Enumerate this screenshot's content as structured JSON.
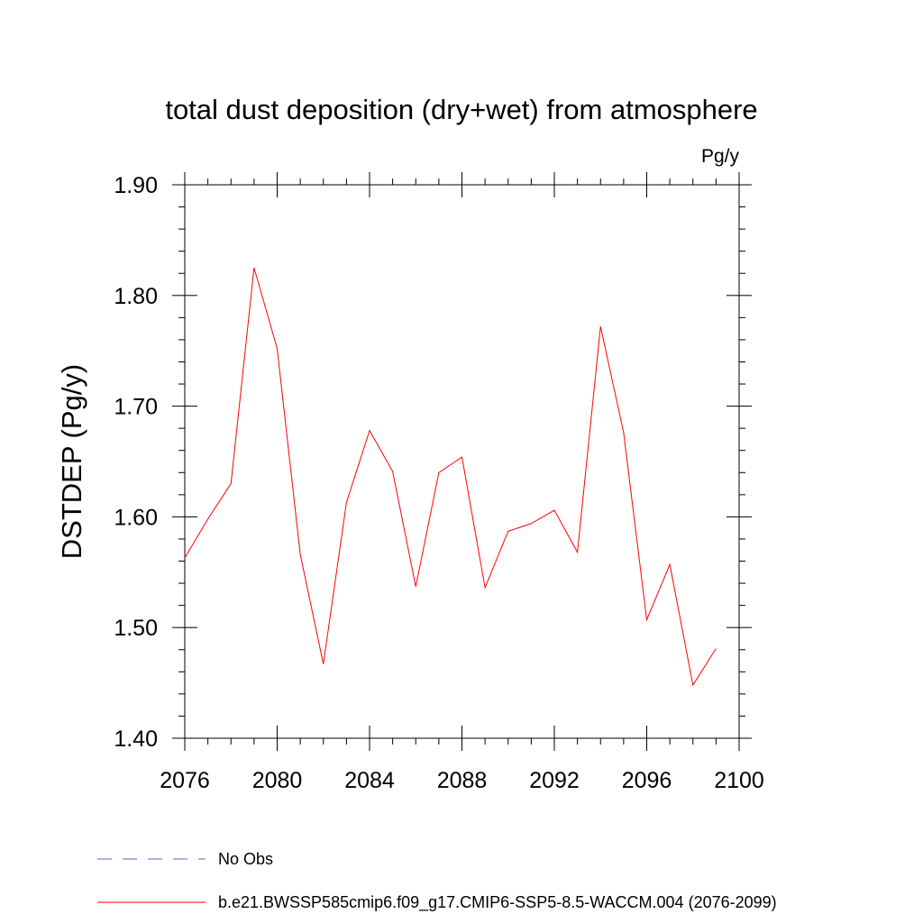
{
  "chart_data": {
    "type": "line",
    "title": "total dust deposition (dry+wet) from atmosphere",
    "units": "Pg/y",
    "xlabel": "",
    "ylabel": "DSTDEP  (Pg/y)",
    "xlim": [
      2076,
      2100
    ],
    "ylim": [
      1.4,
      1.9
    ],
    "x_ticks": [
      2076,
      2080,
      2084,
      2088,
      2092,
      2096,
      2100
    ],
    "x_tick_labels": [
      "2076",
      "2080",
      "2084",
      "2088",
      "2092",
      "2096",
      "2100"
    ],
    "y_ticks": [
      1.4,
      1.5,
      1.6,
      1.7,
      1.8,
      1.9
    ],
    "y_tick_labels": [
      "1.40",
      "1.50",
      "1.60",
      "1.70",
      "1.80",
      "1.90"
    ],
    "grid": false,
    "legend_position": "bottom",
    "series": [
      {
        "name": "b.e21.BWSSP585cmip6.f09_g17.CMIP6-SSP5-8.5-WACCM.004 (2076-2099)",
        "color": "#ff0000",
        "style": "solid",
        "x": [
          2076,
          2077,
          2078,
          2079,
          2080,
          2081,
          2082,
          2083,
          2084,
          2085,
          2086,
          2087,
          2088,
          2089,
          2090,
          2091,
          2092,
          2093,
          2094,
          2095,
          2096,
          2097,
          2098,
          2099
        ],
        "values": [
          1.563,
          1.598,
          1.63,
          1.825,
          1.752,
          1.566,
          1.467,
          1.613,
          1.678,
          1.641,
          1.537,
          1.64,
          1.654,
          1.536,
          1.587,
          1.594,
          1.606,
          1.568,
          1.772,
          1.676,
          1.507,
          1.557,
          1.448,
          1.481
        ]
      }
    ],
    "legend": [
      {
        "label": "No Obs",
        "color": "#6a5acd",
        "style": "dashed"
      },
      {
        "label": "b.e21.BWSSP585cmip6.f09_g17.CMIP6-SSP5-8.5-WACCM.004 (2076-2099)",
        "color": "#ff0000",
        "style": "solid"
      }
    ]
  }
}
